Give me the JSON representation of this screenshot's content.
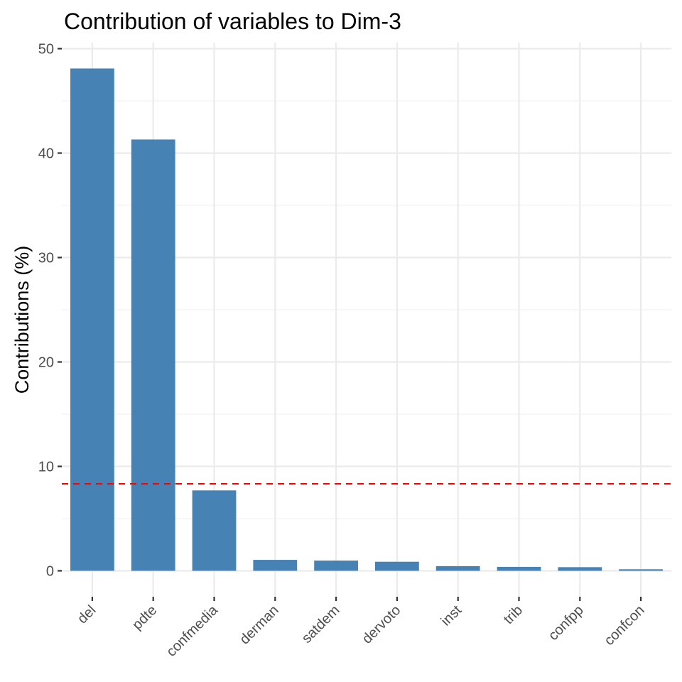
{
  "chart_data": {
    "type": "bar",
    "title": "Contribution of variables to Dim-3",
    "xlabel": "",
    "ylabel": "Contributions (%)",
    "categories": [
      "del",
      "pdte",
      "confmedia",
      "derman",
      "satdem",
      "dervoto",
      "inst",
      "trib",
      "confpp",
      "confcon"
    ],
    "values": [
      48.1,
      41.3,
      7.7,
      1.05,
      0.98,
      0.87,
      0.45,
      0.38,
      0.35,
      0.15
    ],
    "ylim": [
      -0.5,
      50
    ],
    "yticks": [
      0,
      10,
      20,
      30,
      40,
      50
    ],
    "ytick_labels": [
      "0",
      "10",
      "20",
      "30",
      "40",
      "50"
    ],
    "reference_line": {
      "value": 8.33,
      "style": "dashed",
      "color": "#ff0000"
    },
    "bar_color": "#4682b4",
    "grid": true,
    "legend": "none"
  }
}
